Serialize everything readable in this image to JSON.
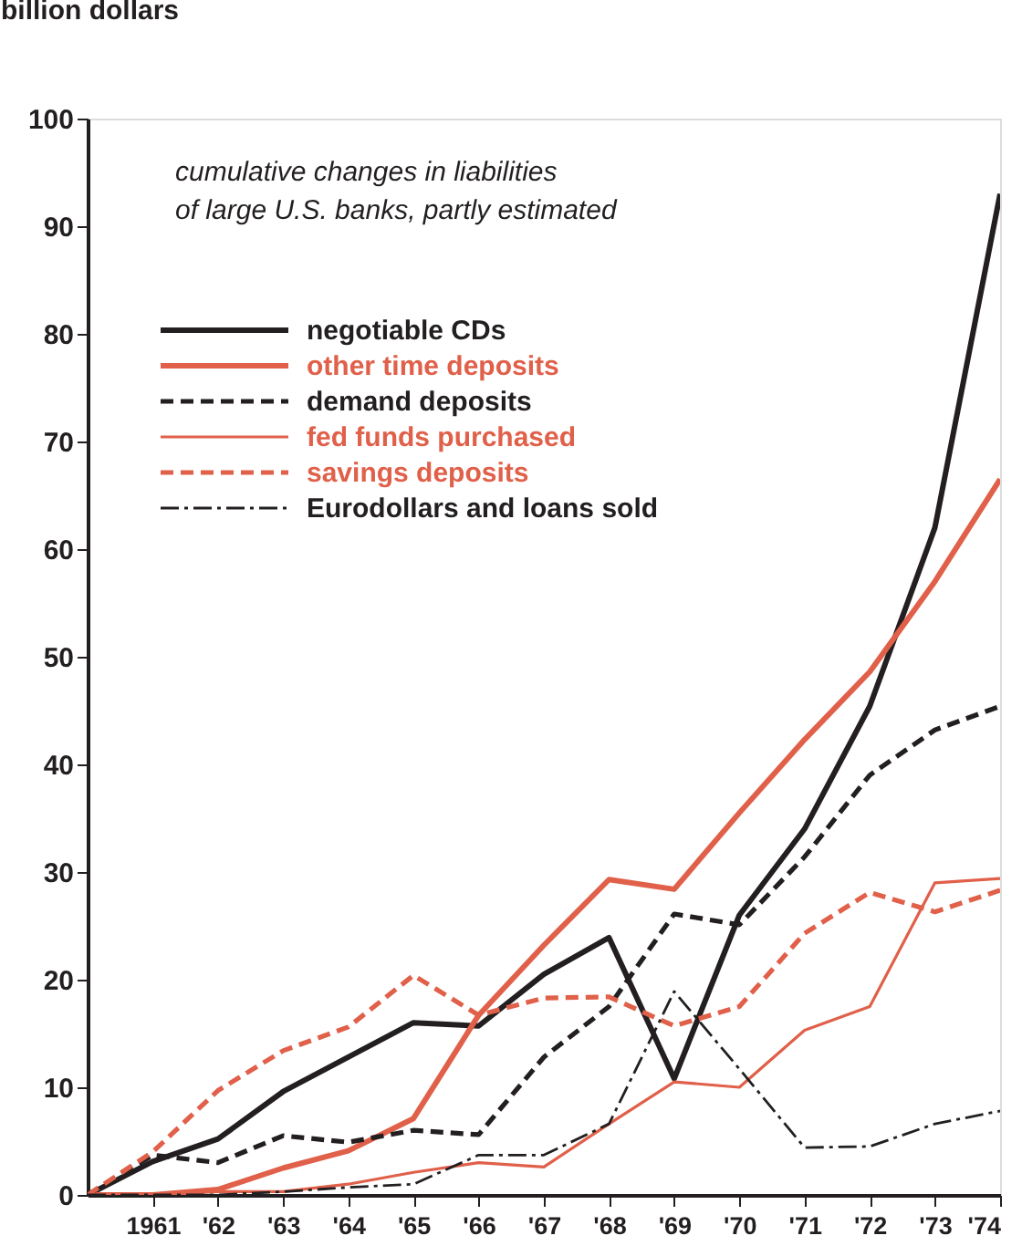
{
  "chart_data": {
    "type": "line",
    "ylabel": "billion dollars",
    "annotations": [
      "cumulative changes in liabilities\nof large U.S. banks, partly estimated"
    ],
    "x": [
      1960,
      1961,
      1962,
      1963,
      1964,
      1965,
      1966,
      1967,
      1968,
      1969,
      1970,
      1971,
      1972,
      1973,
      1974
    ],
    "xlim": [
      1960,
      1974
    ],
    "xticks": [
      {
        "value": 1961,
        "label": "1961"
      },
      {
        "value": 1962,
        "label": "'62"
      },
      {
        "value": 1963,
        "label": "'63"
      },
      {
        "value": 1964,
        "label": "'64"
      },
      {
        "value": 1965,
        "label": "'65"
      },
      {
        "value": 1966,
        "label": "'66"
      },
      {
        "value": 1967,
        "label": "'67"
      },
      {
        "value": 1968,
        "label": "'68"
      },
      {
        "value": 1969,
        "label": "'69"
      },
      {
        "value": 1970,
        "label": "'70"
      },
      {
        "value": 1971,
        "label": "'71"
      },
      {
        "value": 1972,
        "label": "'72"
      },
      {
        "value": 1973,
        "label": "'73"
      },
      {
        "value": 1974,
        "label": "'74"
      }
    ],
    "ylim": [
      0,
      100
    ],
    "yticks": [
      0,
      10,
      20,
      30,
      40,
      50,
      60,
      70,
      80,
      90,
      100
    ],
    "grid": false,
    "legend": "top left",
    "marker": "none",
    "series": [
      {
        "name": "negotiable CDs",
        "color": "#231f20",
        "line_style": "solid",
        "values": [
          0,
          3.1,
          5.2,
          9.6,
          12.8,
          16,
          15.7,
          20.5,
          23.9,
          10.8,
          26,
          34,
          45.4,
          62,
          93
        ]
      },
      {
        "name": "other time deposits",
        "color": "#e0604a",
        "line_style": "solid",
        "values": [
          0,
          0,
          0.5,
          2.5,
          4.1,
          7.1,
          16.7,
          23.2,
          29.3,
          28.4,
          35.5,
          42.3,
          48.6,
          57,
          66.5
        ]
      },
      {
        "name": "demand deposits",
        "color": "#231f20",
        "line_style": "dashed",
        "values": [
          0,
          3.7,
          3,
          5.5,
          4.9,
          6,
          5.6,
          12.8,
          17.5,
          26.1,
          25.1,
          31.4,
          39,
          43.2,
          45.4
        ]
      },
      {
        "name": "fed funds purchased",
        "color": "#e0604a",
        "line_style": "solid",
        "values": [
          0,
          0,
          0.3,
          0.3,
          1,
          2.1,
          3,
          2.6,
          6.6,
          10.5,
          10,
          15.3,
          17.5,
          29,
          29.4
        ]
      },
      {
        "name": "savings deposits",
        "color": "#e0604a",
        "line_style": "dashed",
        "values": [
          0,
          4,
          9.7,
          13.4,
          15.6,
          20.4,
          16.7,
          18.3,
          18.4,
          15.7,
          17.5,
          24.3,
          28.1,
          26.3,
          28.3
        ]
      },
      {
        "name": "Eurodollars and loans sold",
        "color": "#231f20",
        "line_style": "dashdot",
        "values": [
          0,
          0,
          0,
          0.3,
          0.7,
          1,
          3.7,
          3.7,
          6.6,
          18.9,
          11.7,
          4.4,
          4.5,
          6.6,
          7.8
        ]
      }
    ]
  }
}
